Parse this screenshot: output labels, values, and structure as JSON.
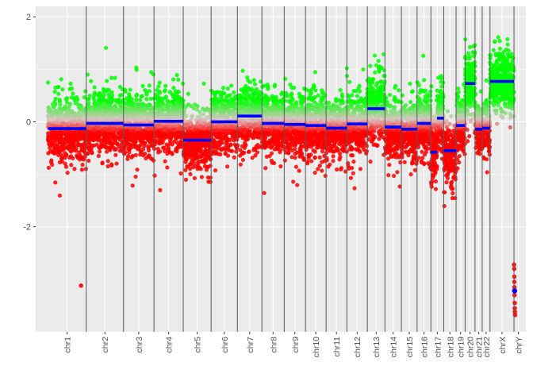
{
  "chart_data": {
    "type": "scatter",
    "title": "",
    "xlabel": "",
    "ylabel": "",
    "ylim": [
      -4.0,
      2.2
    ],
    "yticks": [
      -2,
      0,
      2
    ],
    "grid": true,
    "legend": "none",
    "colors": {
      "panel_bg": "#ebebeb",
      "grid": "#ffffff",
      "boundary": "#595959",
      "high": "#00ff00",
      "neutral": "#d9c5c5",
      "low": "#ff0000",
      "segment": "#0000ff"
    },
    "chromosomes": [
      {
        "name": "chr1",
        "start": 0.0,
        "end": 248.96,
        "segments": [
          {
            "from": 0.0,
            "to": 248.96,
            "value": -0.13
          }
        ],
        "spread": 0.27,
        "outliers": [
          [
            215,
            -3.12
          ]
        ]
      },
      {
        "name": "chr2",
        "start": 248.96,
        "end": 491.15,
        "segments": [
          {
            "from": 248.96,
            "to": 491.15,
            "value": -0.03
          }
        ],
        "spread": 0.28,
        "outliers": []
      },
      {
        "name": "chr3",
        "start": 491.15,
        "end": 689.45,
        "segments": [
          {
            "from": 491.15,
            "to": 689.45,
            "value": -0.06
          }
        ],
        "spread": 0.28,
        "outliers": []
      },
      {
        "name": "chr4",
        "start": 689.45,
        "end": 879.66,
        "segments": [
          {
            "from": 689.45,
            "to": 879.66,
            "value": 0.01
          }
        ],
        "spread": 0.28,
        "outliers": []
      },
      {
        "name": "chr5",
        "start": 879.66,
        "end": 1061.2,
        "segments": [
          {
            "from": 879.66,
            "to": 1061.2,
            "value": -0.35
          }
        ],
        "spread": 0.28,
        "outliers": []
      },
      {
        "name": "chr6",
        "start": 1061.2,
        "end": 1232.0,
        "segments": [
          {
            "from": 1061.2,
            "to": 1232.0,
            "value": 0.0
          }
        ],
        "spread": 0.28,
        "outliers": []
      },
      {
        "name": "chr7",
        "start": 1232.0,
        "end": 1391.4,
        "segments": [
          {
            "from": 1232.0,
            "to": 1391.4,
            "value": 0.11
          }
        ],
        "spread": 0.3,
        "outliers": []
      },
      {
        "name": "chr8",
        "start": 1391.4,
        "end": 1536.5,
        "segments": [
          {
            "from": 1391.4,
            "to": 1536.5,
            "value": -0.03
          }
        ],
        "spread": 0.28,
        "outliers": []
      },
      {
        "name": "chr9",
        "start": 1536.5,
        "end": 1674.9,
        "segments": [
          {
            "from": 1536.5,
            "to": 1674.9,
            "value": -0.05
          }
        ],
        "spread": 0.28,
        "outliers": []
      },
      {
        "name": "chr10",
        "start": 1674.9,
        "end": 1808.7,
        "segments": [
          {
            "from": 1674.9,
            "to": 1808.7,
            "value": -0.07
          }
        ],
        "spread": 0.28,
        "outliers": []
      },
      {
        "name": "chr11",
        "start": 1808.7,
        "end": 1943.8,
        "segments": [
          {
            "from": 1808.7,
            "to": 1943.8,
            "value": -0.12
          }
        ],
        "spread": 0.28,
        "outliers": []
      },
      {
        "name": "chr12",
        "start": 1943.8,
        "end": 2077.1,
        "segments": [
          {
            "from": 1943.8,
            "to": 2077.1,
            "value": -0.04
          }
        ],
        "spread": 0.28,
        "outliers": []
      },
      {
        "name": "chr13",
        "start": 2077.1,
        "end": 2191.5,
        "segments": [
          {
            "from": 2077.1,
            "to": 2191.5,
            "value": 0.25
          }
        ],
        "spread": 0.3,
        "outliers": []
      },
      {
        "name": "chr14",
        "start": 2191.5,
        "end": 2298.5,
        "segments": [
          {
            "from": 2191.5,
            "to": 2298.5,
            "value": -0.1
          }
        ],
        "spread": 0.28,
        "outliers": []
      },
      {
        "name": "chr15",
        "start": 2298.5,
        "end": 2400.5,
        "segments": [
          {
            "from": 2298.5,
            "to": 2400.5,
            "value": -0.14
          }
        ],
        "spread": 0.28,
        "outliers": []
      },
      {
        "name": "chr16",
        "start": 2400.5,
        "end": 2490.8,
        "segments": [
          {
            "from": 2400.5,
            "to": 2490.8,
            "value": -0.03
          }
        ],
        "spread": 0.3,
        "outliers": []
      },
      {
        "name": "chr17",
        "start": 2490.8,
        "end": 2574.1,
        "segments": [
          {
            "from": 2490.8,
            "to": 2530.0,
            "value": -0.58
          },
          {
            "from": 2530.0,
            "to": 2574.1,
            "value": 0.07
          }
        ],
        "spread": 0.32,
        "outliers": []
      },
      {
        "name": "chr18",
        "start": 2574.1,
        "end": 2654.4,
        "segments": [
          {
            "from": 2574.1,
            "to": 2654.4,
            "value": -0.55
          }
        ],
        "spread": 0.3,
        "outliers": []
      },
      {
        "name": "chr19",
        "start": 2654.4,
        "end": 2713.0,
        "segments": [
          {
            "from": 2654.4,
            "to": 2713.0,
            "value": -0.07
          }
        ],
        "spread": 0.28,
        "outliers": []
      },
      {
        "name": "chr20",
        "start": 2713.0,
        "end": 2777.5,
        "segments": [
          {
            "from": 2713.0,
            "to": 2777.5,
            "value": 0.73
          }
        ],
        "spread": 0.3,
        "outliers": []
      },
      {
        "name": "chr21",
        "start": 2777.5,
        "end": 2824.2,
        "segments": [
          {
            "from": 2777.5,
            "to": 2824.2,
            "value": -0.14
          }
        ],
        "spread": 0.28,
        "outliers": []
      },
      {
        "name": "chr22",
        "start": 2824.2,
        "end": 2875.0,
        "segments": [
          {
            "from": 2824.2,
            "to": 2875.0,
            "value": -0.12
          }
        ],
        "spread": 0.28,
        "outliers": []
      },
      {
        "name": "chrX",
        "start": 2875.0,
        "end": 3031.0,
        "segments": [
          {
            "from": 2875.0,
            "to": 3031.0,
            "value": 0.77
          }
        ],
        "spread": 0.28,
        "outliers": []
      },
      {
        "name": "chrY",
        "start": 3031.0,
        "end": 3088.2,
        "segments": [
          {
            "from": 3031.0,
            "to": 3039.0,
            "value": -3.22
          }
        ],
        "spread": 0.0,
        "outliers": [
          [
            3031.5,
            -2.72
          ],
          [
            3032.5,
            -2.8
          ],
          [
            3033.0,
            -2.95
          ],
          [
            3033.5,
            -3.05
          ],
          [
            3034.0,
            -3.15
          ],
          [
            3034.5,
            -3.3
          ],
          [
            3035.5,
            -3.45
          ],
          [
            3036.0,
            -3.55
          ],
          [
            3036.5,
            -3.62
          ],
          [
            3038.0,
            -3.68
          ]
        ]
      }
    ]
  }
}
